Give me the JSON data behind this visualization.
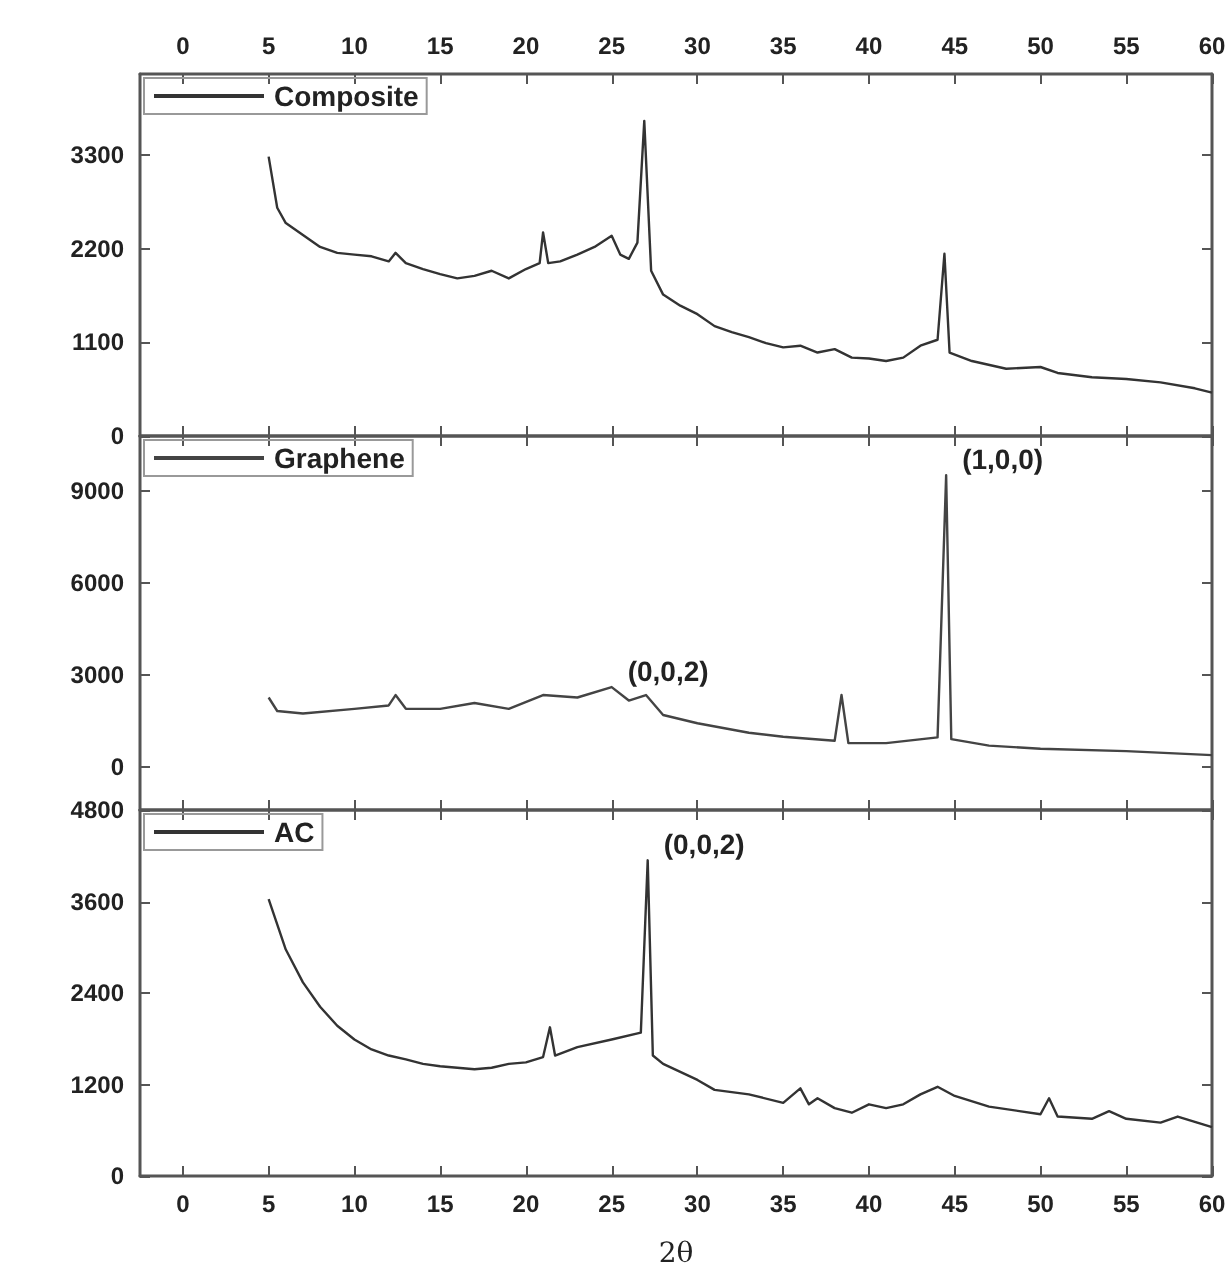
{
  "chart_data": [
    {
      "type": "line",
      "xlim": [
        -2.5,
        60
      ],
      "xticks": [
        0,
        5,
        10,
        15,
        20,
        25,
        30,
        35,
        40,
        45,
        50,
        55,
        60
      ],
      "ylim": [
        0,
        4250
      ],
      "yticks": [
        0,
        1100,
        2200,
        3300
      ],
      "legend": "top left",
      "grid": false,
      "series": [
        {
          "name": "Composite",
          "color": "#333333",
          "x": [
            5,
            5.5,
            6,
            7,
            8,
            9,
            10,
            11,
            12,
            12.4,
            13,
            14,
            15,
            16,
            17,
            18,
            19,
            20,
            20.8,
            21,
            21.3,
            22,
            23,
            24,
            25,
            25.5,
            26,
            26.5,
            26.9,
            27.3,
            28,
            29,
            30,
            31,
            32,
            33,
            34,
            35,
            36,
            37,
            38,
            39,
            40,
            41,
            42,
            43,
            44,
            44.4,
            44.7,
            46,
            48,
            50,
            51,
            53,
            55,
            57,
            59,
            60
          ],
          "values": [
            3280,
            2680,
            2500,
            2360,
            2220,
            2150,
            2130,
            2110,
            2050,
            2150,
            2030,
            1960,
            1900,
            1850,
            1880,
            1940,
            1850,
            1960,
            2030,
            2390,
            2030,
            2050,
            2130,
            2220,
            2350,
            2130,
            2080,
            2270,
            3700,
            1940,
            1660,
            1530,
            1430,
            1290,
            1220,
            1160,
            1090,
            1040,
            1060,
            980,
            1020,
            920,
            910,
            880,
            920,
            1060,
            1130,
            2140,
            980,
            880,
            790,
            810,
            740,
            690,
            670,
            630,
            560,
            510
          ]
        }
      ]
    },
    {
      "type": "line",
      "xlim": [
        -2.5,
        60
      ],
      "xticks": [
        0,
        5,
        10,
        15,
        20,
        25,
        30,
        35,
        40,
        45,
        50,
        55,
        60
      ],
      "ylim": [
        -1400,
        10800
      ],
      "yticks": [
        0,
        3000,
        6000,
        9000
      ],
      "legend": "top left",
      "grid": false,
      "tick_labels": "y",
      "annotations": [
        {
          "text": "(0,0,2)",
          "x": 25,
          "y": 2610
        },
        {
          "text": "(1,0,0)",
          "x": 44.5,
          "y": 9520
        }
      ],
      "series": [
        {
          "name": "Graphene",
          "color": "#444444",
          "x": [
            5,
            5.5,
            7,
            10,
            12,
            12.4,
            13,
            15,
            17,
            19,
            21,
            23,
            25,
            26,
            27,
            28,
            30,
            33,
            35,
            38,
            38.4,
            38.8,
            41,
            44,
            44.5,
            44.8,
            47,
            50,
            55,
            60
          ],
          "values": [
            2270,
            1830,
            1750,
            1900,
            2010,
            2350,
            1900,
            1900,
            2090,
            1900,
            2350,
            2270,
            2610,
            2170,
            2350,
            1700,
            1430,
            1120,
            990,
            860,
            2350,
            780,
            780,
            970,
            9520,
            910,
            700,
            600,
            520,
            390
          ]
        }
      ]
    },
    {
      "type": "line",
      "xlim": [
        -2.5,
        60
      ],
      "xticks": [
        0,
        5,
        10,
        15,
        20,
        25,
        30,
        35,
        40,
        45,
        50,
        55,
        60
      ],
      "ylim": [
        0,
        4800
      ],
      "yticks": [
        0,
        1200,
        2400,
        3600,
        4800
      ],
      "legend": "top left",
      "grid": false,
      "xlabel": "2θ",
      "annotations": [
        {
          "text": "(0,0,2)",
          "x": 27.1,
          "y": 4140
        }
      ],
      "series": [
        {
          "name": "AC",
          "color": "#333333",
          "x": [
            5,
            6,
            7,
            8,
            9,
            10,
            11,
            12,
            13,
            14,
            15,
            16,
            17,
            18,
            19,
            20,
            21,
            21.4,
            21.7,
            23,
            25,
            26.7,
            27.1,
            27.4,
            28,
            30,
            31,
            33,
            35,
            36,
            36.5,
            37,
            38,
            39,
            40,
            41,
            42,
            43,
            44,
            45,
            47,
            50,
            50.5,
            51,
            53,
            54,
            55,
            57,
            58,
            60
          ],
          "values": [
            3630,
            2970,
            2540,
            2220,
            1970,
            1790,
            1660,
            1580,
            1530,
            1470,
            1440,
            1420,
            1400,
            1420,
            1470,
            1490,
            1560,
            1950,
            1580,
            1690,
            1790,
            1880,
            4140,
            1580,
            1470,
            1260,
            1130,
            1070,
            960,
            1150,
            940,
            1020,
            890,
            830,
            940,
            890,
            940,
            1070,
            1170,
            1050,
            910,
            810,
            1020,
            780,
            750,
            850,
            750,
            700,
            780,
            640
          ]
        }
      ]
    }
  ]
}
